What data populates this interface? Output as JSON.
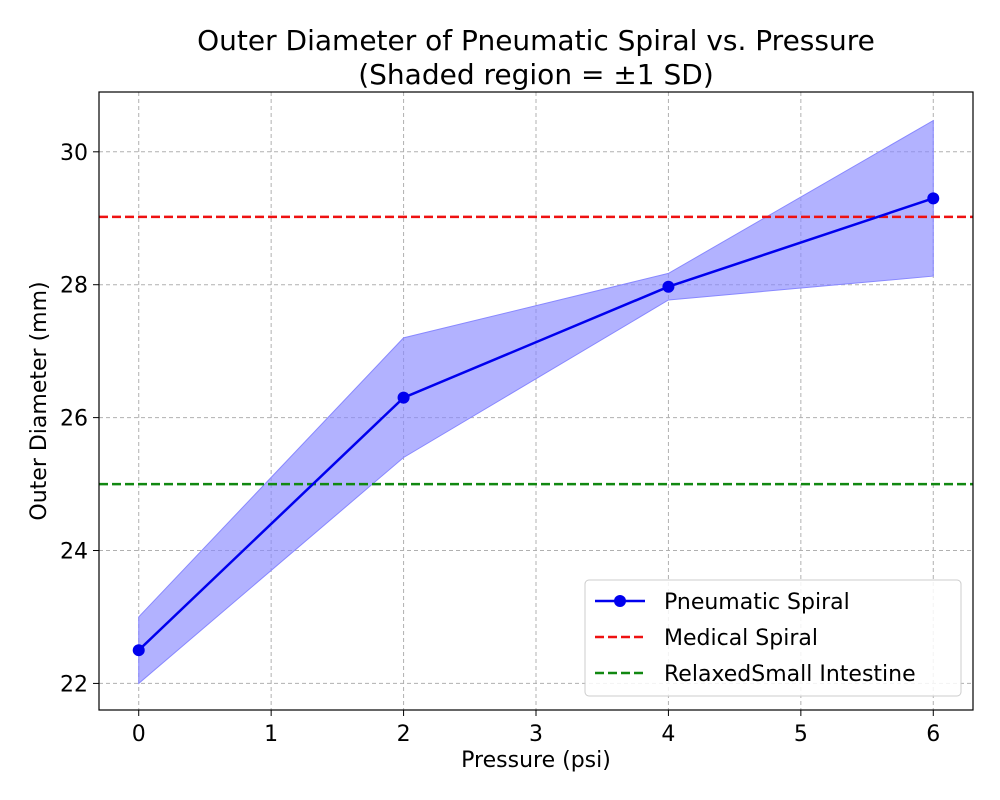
{
  "chart_data": {
    "type": "line",
    "title": "Outer Diameter of Pneumatic Spiral vs. Pressure",
    "subtitle": "(Shaded region = ±1 SD)",
    "xlabel": "Pressure (psi)",
    "ylabel": "Outer Diameter (mm)",
    "xlim": [
      -0.3,
      6.3
    ],
    "ylim": [
      21.6,
      30.9
    ],
    "xticks": [
      0,
      1,
      2,
      3,
      4,
      5,
      6
    ],
    "xtick_labels": [
      "0",
      "1",
      "2",
      "3",
      "4",
      "5",
      "6"
    ],
    "yticks": [
      22,
      24,
      26,
      28,
      30
    ],
    "ytick_labels": [
      "22",
      "24",
      "26",
      "28",
      "30"
    ],
    "grid": true,
    "legend_position": "lower-right",
    "series": [
      {
        "name": "Pneumatic Spiral",
        "style": "solid-line-with-markers",
        "color": "#0000ee",
        "x": [
          0,
          2,
          4,
          6
        ],
        "y": [
          22.5,
          26.3,
          27.97,
          29.3
        ],
        "sd": [
          0.5,
          0.9,
          0.2,
          1.17
        ]
      }
    ],
    "reference_lines": [
      {
        "name": "Medical Spiral",
        "y": 29.02,
        "color": "#ee1111",
        "style": "dashed"
      },
      {
        "name": "RelaxedSmall Intestine",
        "y": 25.0,
        "color": "#118811",
        "style": "dashed"
      }
    ],
    "band_color": "#8888ff"
  }
}
